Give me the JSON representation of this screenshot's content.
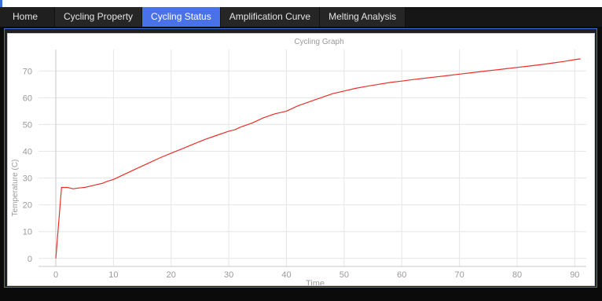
{
  "tabs": [
    {
      "label": "Home",
      "active": false
    },
    {
      "label": "Cycling Property",
      "active": false
    },
    {
      "label": "Cycling Status",
      "active": true
    },
    {
      "label": "Amplification Curve",
      "active": false
    },
    {
      "label": "Melting Analysis",
      "active": false
    }
  ],
  "colors": {
    "accent": "#4a72e8",
    "series": "#e8302a",
    "grid": "#e6e6e6",
    "axis_text": "#9a9a9a"
  },
  "chart_data": {
    "type": "line",
    "title": "Cycling Graph",
    "xlabel": "Time",
    "ylabel": "Temperature (C)",
    "xlim": [
      -3,
      92
    ],
    "ylim": [
      -3,
      78
    ],
    "xticks": [
      0,
      10,
      20,
      30,
      40,
      50,
      60,
      70,
      80,
      90
    ],
    "yticks": [
      0,
      10,
      20,
      30,
      40,
      50,
      60,
      70
    ],
    "grid": true,
    "series": [
      {
        "x": [
          0,
          1,
          2,
          3,
          4,
          5,
          6,
          7,
          8,
          9,
          10,
          12,
          14,
          16,
          18,
          20,
          22,
          24,
          26,
          28,
          30,
          31,
          32,
          34,
          36,
          38,
          40,
          42,
          44,
          46,
          48,
          50,
          52,
          54,
          56,
          58,
          60,
          62,
          64,
          66,
          68,
          70,
          72,
          74,
          76,
          78,
          80,
          82,
          84,
          86,
          88,
          90,
          91
        ],
        "y": [
          0,
          26.5,
          26.5,
          26,
          26.3,
          26.5,
          27,
          27.5,
          28,
          28.8,
          29.5,
          31.5,
          33.5,
          35.5,
          37.5,
          39.3,
          41,
          42.8,
          44.5,
          46,
          47.5,
          48,
          49,
          50.5,
          52.5,
          54,
          55,
          57,
          58.5,
          60,
          61.5,
          62.5,
          63.5,
          64.3,
          65,
          65.7,
          66.2,
          66.8,
          67.3,
          67.8,
          68.3,
          68.8,
          69.3,
          69.8,
          70.3,
          70.8,
          71.3,
          71.8,
          72.3,
          72.9,
          73.5,
          74.2,
          74.5
        ]
      }
    ]
  }
}
